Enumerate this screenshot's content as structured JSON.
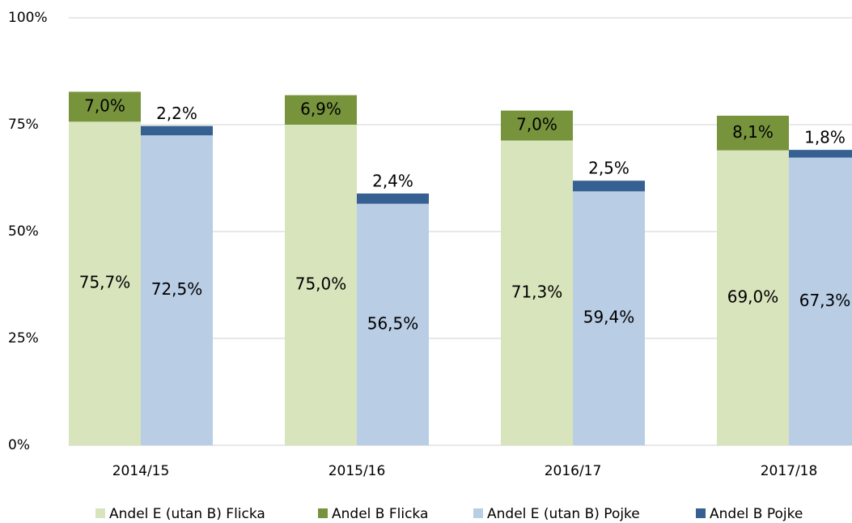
{
  "chart_data": {
    "type": "bar",
    "stacked": true,
    "categories": [
      "2014/15",
      "2015/16",
      "2016/17",
      "2017/18"
    ],
    "series": [
      {
        "name": "Andel E (utan B) Flicka",
        "color": "#d8e4bc",
        "stack": "Flicka",
        "values": [
          75.7,
          75.0,
          71.3,
          69.0
        ],
        "value_labels": [
          "75,7%",
          "75,0%",
          "71,3%",
          "69,0%"
        ]
      },
      {
        "name": "Andel B Flicka",
        "color": "#77933c",
        "stack": "Flicka",
        "values": [
          7.0,
          6.9,
          7.0,
          8.1
        ],
        "value_labels": [
          "7,0%",
          "6,9%",
          "7,0%",
          "8,1%"
        ]
      },
      {
        "name": "Andel E (utan B) Pojke",
        "color": "#b9cde5",
        "stack": "Pojke",
        "values": [
          72.5,
          56.5,
          59.4,
          67.3
        ],
        "value_labels": [
          "72,5%",
          "56,5%",
          "59,4%",
          "67,3%"
        ]
      },
      {
        "name": "Andel B Pojke",
        "color": "#366092",
        "stack": "Pojke",
        "values": [
          2.2,
          2.4,
          2.5,
          1.8
        ],
        "value_labels": [
          "2,2%",
          "2,4%",
          "2,5%",
          "1,8%"
        ]
      }
    ],
    "ylim": [
      0,
      100
    ],
    "yticks": [
      {
        "value": 0,
        "label": "0%"
      },
      {
        "value": 25,
        "label": "25%"
      },
      {
        "value": 50,
        "label": "50%"
      },
      {
        "value": 75,
        "label": "75%"
      },
      {
        "value": 100,
        "label": "100%"
      }
    ],
    "grid": true,
    "legend": "bottom"
  }
}
